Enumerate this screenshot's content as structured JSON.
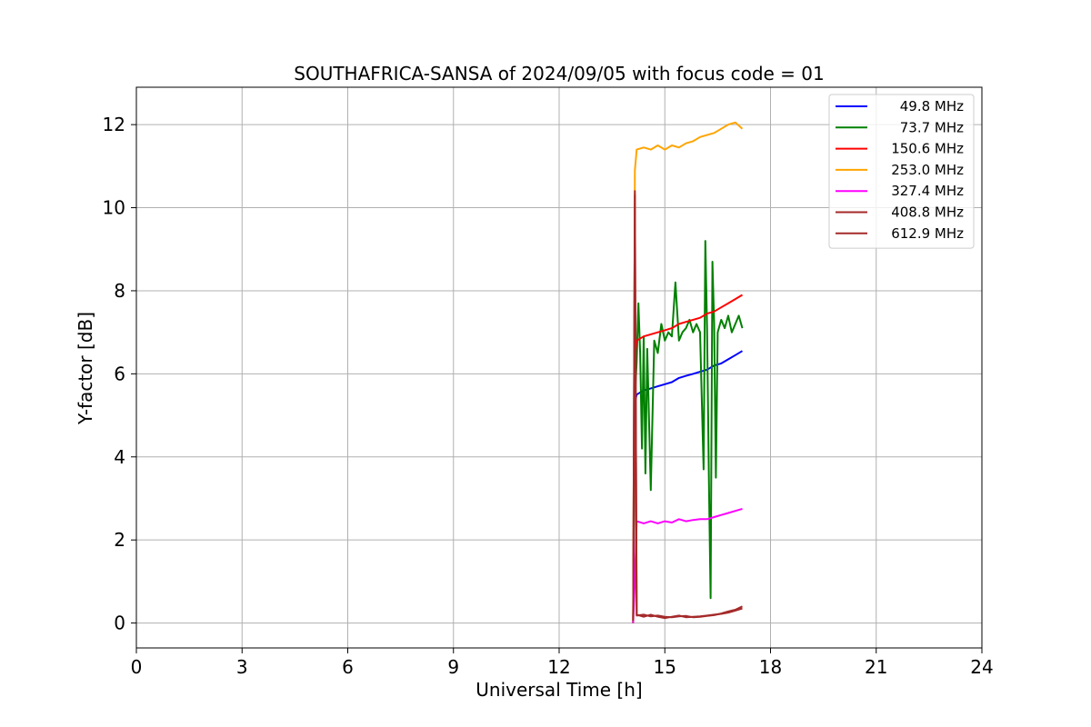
{
  "chart_data": {
    "type": "line",
    "title": "SOUTHAFRICA-SANSA of 2024/09/05 with focus code = 01",
    "xlabel": "Universal Time [h]",
    "ylabel": "Y-factor [dB]",
    "xlim": [
      0,
      24
    ],
    "ylim": [
      -0.6,
      12.9
    ],
    "xticks": [
      0,
      3,
      6,
      9,
      12,
      15,
      18,
      21,
      24
    ],
    "yticks": [
      0,
      2,
      4,
      6,
      8,
      10,
      12
    ],
    "grid": true,
    "legend_position": "top-right",
    "series": [
      {
        "name": "49.8 MHz",
        "color": "#0000ff",
        "x": [
          14.1,
          14.15,
          14.2,
          14.4,
          14.6,
          14.8,
          15.0,
          15.2,
          15.4,
          15.6,
          15.8,
          16.0,
          16.2,
          16.4,
          16.6,
          16.8,
          17.0,
          17.2
        ],
        "y": [
          0.0,
          5.3,
          5.5,
          5.6,
          5.65,
          5.7,
          5.75,
          5.8,
          5.9,
          5.95,
          6.0,
          6.05,
          6.1,
          6.2,
          6.25,
          6.35,
          6.45,
          6.55
        ]
      },
      {
        "name": "73.7 MHz",
        "color": "#008000",
        "x": [
          14.1,
          14.15,
          14.2,
          14.25,
          14.3,
          14.35,
          14.4,
          14.45,
          14.5,
          14.6,
          14.7,
          14.8,
          14.9,
          15.0,
          15.1,
          15.2,
          15.3,
          15.4,
          15.5,
          15.6,
          15.7,
          15.8,
          15.9,
          16.0,
          16.1,
          16.15,
          16.2,
          16.25,
          16.3,
          16.35,
          16.4,
          16.45,
          16.5,
          16.6,
          16.7,
          16.8,
          16.9,
          17.0,
          17.1,
          17.2
        ],
        "y": [
          0.0,
          5.4,
          6.3,
          7.7,
          6.5,
          4.2,
          6.9,
          3.6,
          6.6,
          3.2,
          6.8,
          6.5,
          7.2,
          6.8,
          7.0,
          6.9,
          8.2,
          6.8,
          7.0,
          7.1,
          7.3,
          7.0,
          7.2,
          7.0,
          3.7,
          9.2,
          7.1,
          3.5,
          0.6,
          8.7,
          7.2,
          3.5,
          7.0,
          7.3,
          7.1,
          7.4,
          7.0,
          7.2,
          7.4,
          7.1
        ]
      },
      {
        "name": "150.6 MHz",
        "color": "#ff0000",
        "x": [
          14.1,
          14.15,
          14.2,
          14.4,
          14.6,
          14.8,
          15.0,
          15.2,
          15.4,
          15.6,
          15.8,
          16.0,
          16.2,
          16.4,
          16.6,
          16.8,
          17.0,
          17.2
        ],
        "y": [
          0.0,
          6.4,
          6.8,
          6.9,
          6.95,
          7.0,
          7.05,
          7.1,
          7.2,
          7.25,
          7.3,
          7.35,
          7.45,
          7.5,
          7.6,
          7.7,
          7.8,
          7.9
        ]
      },
      {
        "name": "253.0 MHz",
        "color": "#ffa500",
        "x": [
          14.1,
          14.15,
          14.2,
          14.4,
          14.6,
          14.8,
          15.0,
          15.2,
          15.4,
          15.6,
          15.8,
          16.0,
          16.2,
          16.4,
          16.6,
          16.8,
          17.0,
          17.2
        ],
        "y": [
          0.0,
          10.9,
          11.4,
          11.45,
          11.4,
          11.5,
          11.4,
          11.5,
          11.45,
          11.55,
          11.6,
          11.7,
          11.75,
          11.8,
          11.9,
          12.0,
          12.05,
          11.9
        ]
      },
      {
        "name": "327.4 MHz",
        "color": "#ff00ff",
        "x": [
          14.1,
          14.15,
          14.2,
          14.4,
          14.6,
          14.8,
          15.0,
          15.2,
          15.4,
          15.6,
          15.8,
          16.0,
          16.2,
          16.4,
          16.6,
          16.8,
          17.0,
          17.2
        ],
        "y": [
          0.0,
          1.0,
          2.45,
          2.4,
          2.45,
          2.4,
          2.45,
          2.42,
          2.5,
          2.45,
          2.48,
          2.5,
          2.5,
          2.55,
          2.6,
          2.65,
          2.7,
          2.75
        ]
      },
      {
        "name": "408.8 MHz",
        "color": "#a52a2a",
        "x": [
          14.1,
          14.15,
          14.2,
          14.4,
          14.6,
          14.8,
          15.0,
          15.2,
          15.4,
          15.6,
          15.8,
          16.0,
          16.2,
          16.4,
          16.6,
          16.8,
          17.0,
          17.2
        ],
        "y": [
          0.1,
          10.4,
          0.2,
          0.15,
          0.2,
          0.15,
          0.12,
          0.15,
          0.18,
          0.14,
          0.15,
          0.16,
          0.18,
          0.2,
          0.22,
          0.25,
          0.3,
          0.35
        ]
      },
      {
        "name": "612.9 MHz",
        "color": "#a52a2a",
        "x": [
          14.1,
          14.15,
          14.2,
          14.4,
          14.6,
          14.8,
          15.0,
          15.2,
          15.4,
          15.6,
          15.8,
          16.0,
          16.2,
          16.4,
          16.6,
          16.8,
          17.0,
          17.2
        ],
        "y": [
          0.05,
          10.3,
          0.18,
          0.2,
          0.16,
          0.18,
          0.15,
          0.14,
          0.16,
          0.17,
          0.14,
          0.15,
          0.17,
          0.19,
          0.23,
          0.28,
          0.32,
          0.4
        ]
      }
    ]
  }
}
